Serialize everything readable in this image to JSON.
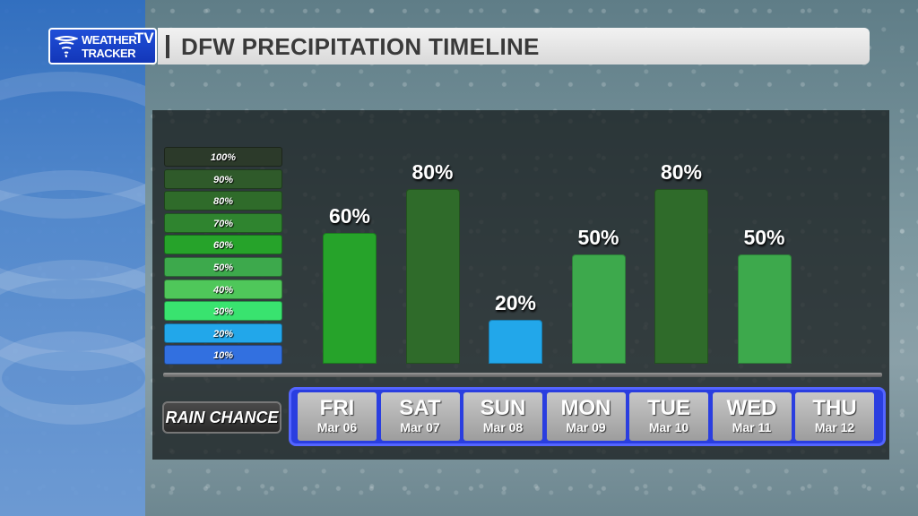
{
  "header": {
    "logo_line1": "WEATHER",
    "logo_line2": "TRACKER",
    "logo_tv": "TV",
    "title": "DFW PRECIPITATION TIMELINE"
  },
  "legend": {
    "levels": [
      {
        "label": "100%",
        "color": "#2c3a2a"
      },
      {
        "label": "90%",
        "color": "#2f5a2a"
      },
      {
        "label": "80%",
        "color": "#2f6b2a"
      },
      {
        "label": "70%",
        "color": "#2f842f"
      },
      {
        "label": "60%",
        "color": "#26a32a"
      },
      {
        "label": "50%",
        "color": "#3da94c"
      },
      {
        "label": "40%",
        "color": "#4fc75a"
      },
      {
        "label": "30%",
        "color": "#39e36f"
      },
      {
        "label": "20%",
        "color": "#22a7ea"
      },
      {
        "label": "10%",
        "color": "#3270e0"
      }
    ]
  },
  "rain_chance_label": "RAIN CHANCE",
  "chart_data": {
    "type": "bar",
    "title": "DFW PRECIPITATION TIMELINE",
    "xlabel": "",
    "ylabel": "",
    "ylim": [
      0,
      100
    ],
    "categories": [
      "FRI",
      "SAT",
      "SUN",
      "MON",
      "TUE",
      "WED",
      "THU"
    ],
    "dates": [
      "Mar 06",
      "Mar 07",
      "Mar 08",
      "Mar 09",
      "Mar 10",
      "Mar 11",
      "Mar 12"
    ],
    "values": [
      60,
      80,
      20,
      50,
      80,
      50,
      null
    ],
    "value_labels": [
      "60%",
      "80%",
      "20%",
      "50%",
      "80%",
      "50%",
      ""
    ],
    "bar_colors": [
      "#26a32a",
      "#2f6b2a",
      "#22a7ea",
      "#3da94c",
      "#2f6b2a",
      "#3da94c",
      ""
    ]
  }
}
